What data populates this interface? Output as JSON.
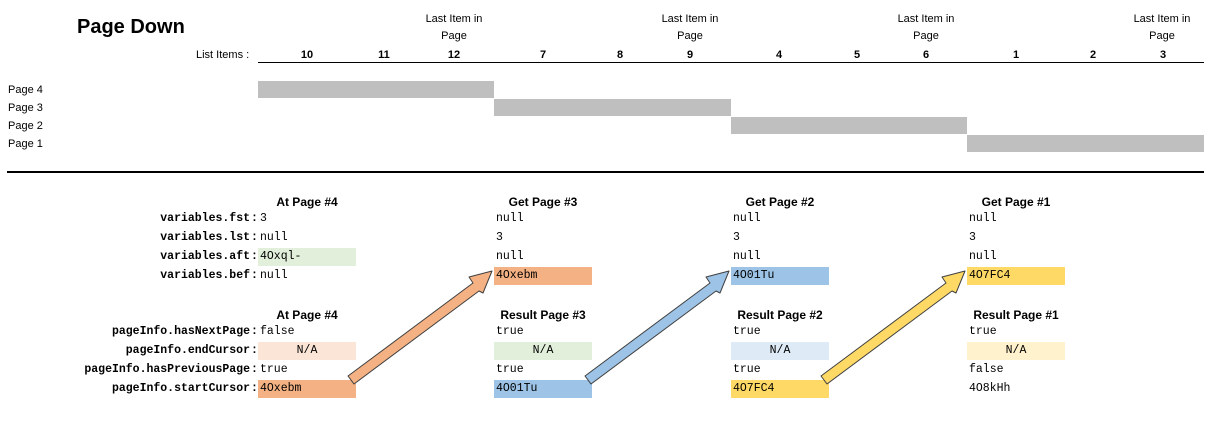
{
  "title": "Page Down",
  "column_headers": [
    {
      "line1": "Last Item in",
      "line2": "Page"
    },
    {
      "line1": "Last Item in",
      "line2": "Page"
    },
    {
      "line1": "Last Item in",
      "line2": "Page"
    },
    {
      "line1": "Last Item in",
      "line2": "Page"
    }
  ],
  "list_items_label": "List Items :",
  "list_items": [
    "10",
    "11",
    "12",
    "7",
    "8",
    "9",
    "4",
    "5",
    "6",
    "1",
    "2",
    "3"
  ],
  "pages": [
    {
      "label": "Page 4"
    },
    {
      "label": "Page 3"
    },
    {
      "label": "Page 2"
    },
    {
      "label": "Page 1"
    }
  ],
  "variables_labels": [
    "variables.fst",
    "variables.lst",
    "variables.aft",
    "variables.bef"
  ],
  "pageinfo_labels": [
    "pageInfo.hasNextPage",
    "pageInfo.endCursor",
    "pageInfo.hasPreviousPage",
    "pageInfo.startCursor"
  ],
  "colon": ":",
  "sections": [
    {
      "var_header": "At Page #4",
      "vars": [
        "3",
        "null",
        "4Oxql-",
        "null"
      ],
      "info_header": "At Page #4",
      "info": [
        "false",
        "N/A",
        "true",
        "4Oxebm"
      ]
    },
    {
      "var_header": "Get Page #3",
      "vars": [
        "null",
        "3",
        "null",
        "4Oxebm"
      ],
      "info_header": "Result Page #3",
      "info": [
        "true",
        "N/A",
        "true",
        "4O01Tu"
      ]
    },
    {
      "var_header": "Get Page #2",
      "vars": [
        "null",
        "3",
        "null",
        "4O01Tu"
      ],
      "info_header": "Result Page #2",
      "info": [
        "true",
        "N/A",
        "true",
        "4O7FC4"
      ]
    },
    {
      "var_header": "Get Page #1",
      "vars": [
        "null",
        "3",
        "null",
        "4O7FC4"
      ],
      "info_header": "Result Page #1",
      "info": [
        "true",
        "N/A",
        "false",
        "4O8kHh"
      ]
    }
  ],
  "colors": {
    "bar": "#bfbfbf",
    "orange": "#f4b183",
    "orange_light": "#fbe5d6",
    "blue": "#9dc3e6",
    "blue_light": "#deebf7",
    "yellow": "#ffd966",
    "yellow_light": "#fff2cc",
    "green_light": "#e2efda"
  }
}
